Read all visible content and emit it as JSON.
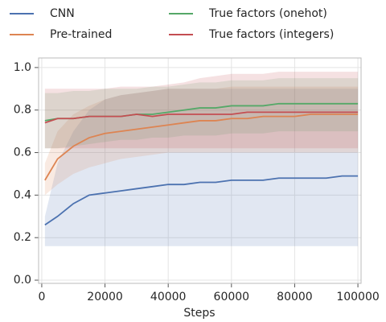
{
  "chart_data": {
    "type": "line",
    "x_label": "Steps",
    "x": [
      1000,
      5000,
      10000,
      15000,
      20000,
      25000,
      30000,
      35000,
      40000,
      45000,
      50000,
      55000,
      60000,
      65000,
      70000,
      75000,
      80000,
      85000,
      90000,
      95000,
      100000
    ],
    "series": [
      {
        "name": "CNN",
        "color": "#4c72b0",
        "values": [
          0.26,
          0.3,
          0.36,
          0.4,
          0.41,
          0.42,
          0.43,
          0.44,
          0.45,
          0.45,
          0.46,
          0.46,
          0.47,
          0.47,
          0.47,
          0.48,
          0.48,
          0.48,
          0.48,
          0.49,
          0.49
        ],
        "lower": [
          0.16,
          0.16,
          0.16,
          0.16,
          0.16,
          0.16,
          0.16,
          0.16,
          0.16,
          0.16,
          0.16,
          0.16,
          0.16,
          0.16,
          0.16,
          0.16,
          0.16,
          0.16,
          0.16,
          0.16,
          0.16
        ],
        "upper": [
          0.3,
          0.55,
          0.7,
          0.8,
          0.85,
          0.87,
          0.88,
          0.89,
          0.9,
          0.9,
          0.9,
          0.9,
          0.9,
          0.9,
          0.9,
          0.9,
          0.9,
          0.9,
          0.9,
          0.9,
          0.9
        ]
      },
      {
        "name": "Pre-trained",
        "color": "#dd8452",
        "values": [
          0.47,
          0.57,
          0.63,
          0.67,
          0.69,
          0.7,
          0.71,
          0.72,
          0.73,
          0.74,
          0.75,
          0.75,
          0.76,
          0.76,
          0.77,
          0.77,
          0.77,
          0.78,
          0.78,
          0.78,
          0.78
        ],
        "lower": [
          0.4,
          0.45,
          0.5,
          0.53,
          0.55,
          0.57,
          0.58,
          0.59,
          0.6,
          0.6,
          0.6,
          0.6,
          0.6,
          0.6,
          0.6,
          0.6,
          0.6,
          0.6,
          0.6,
          0.6,
          0.6
        ],
        "upper": [
          0.55,
          0.7,
          0.78,
          0.82,
          0.85,
          0.87,
          0.88,
          0.89,
          0.9,
          0.9,
          0.9,
          0.9,
          0.91,
          0.91,
          0.91,
          0.91,
          0.91,
          0.91,
          0.91,
          0.91,
          0.91
        ]
      },
      {
        "name": "True factors (onehot)",
        "color": "#55a868",
        "values": [
          0.75,
          0.76,
          0.76,
          0.77,
          0.77,
          0.77,
          0.78,
          0.78,
          0.79,
          0.8,
          0.81,
          0.81,
          0.82,
          0.82,
          0.82,
          0.83,
          0.83,
          0.83,
          0.83,
          0.83,
          0.83
        ],
        "lower": [
          0.62,
          0.62,
          0.63,
          0.64,
          0.65,
          0.66,
          0.66,
          0.67,
          0.67,
          0.68,
          0.68,
          0.68,
          0.69,
          0.69,
          0.69,
          0.7,
          0.7,
          0.7,
          0.7,
          0.7,
          0.7
        ],
        "upper": [
          0.88,
          0.88,
          0.89,
          0.89,
          0.9,
          0.9,
          0.9,
          0.91,
          0.91,
          0.92,
          0.93,
          0.93,
          0.94,
          0.94,
          0.94,
          0.95,
          0.95,
          0.95,
          0.95,
          0.95,
          0.95
        ]
      },
      {
        "name": "True factors (integers)",
        "color": "#c44e52",
        "values": [
          0.74,
          0.76,
          0.76,
          0.77,
          0.77,
          0.77,
          0.78,
          0.77,
          0.78,
          0.78,
          0.78,
          0.78,
          0.78,
          0.79,
          0.79,
          0.79,
          0.79,
          0.79,
          0.79,
          0.79,
          0.79
        ],
        "lower": [
          0.62,
          0.62,
          0.62,
          0.62,
          0.62,
          0.62,
          0.62,
          0.62,
          0.62,
          0.62,
          0.62,
          0.62,
          0.62,
          0.62,
          0.62,
          0.62,
          0.62,
          0.62,
          0.62,
          0.62,
          0.62
        ],
        "upper": [
          0.9,
          0.9,
          0.9,
          0.9,
          0.9,
          0.91,
          0.91,
          0.91,
          0.92,
          0.93,
          0.95,
          0.96,
          0.97,
          0.97,
          0.97,
          0.98,
          0.98,
          0.98,
          0.98,
          0.98,
          0.98
        ]
      }
    ],
    "xlim": [
      -1000,
      101000
    ],
    "ylim": [
      -0.015,
      1.045
    ],
    "xticks": [
      0,
      20000,
      40000,
      60000,
      80000,
      100000
    ],
    "yticks": [
      {
        "value": 0,
        "label": "0.0"
      },
      {
        "value": 0.2,
        "label": "0.2"
      },
      {
        "value": 0.4,
        "label": "0.4"
      },
      {
        "value": 0.6,
        "label": "0.6"
      },
      {
        "value": 0.8,
        "label": "0.8"
      },
      {
        "value": 1.0,
        "label": "1.0"
      }
    ],
    "grid": true
  }
}
